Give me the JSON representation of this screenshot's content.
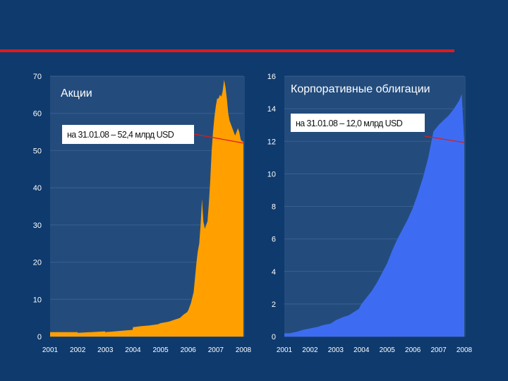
{
  "colors": {
    "background": "#0e3a6e",
    "plot_area": "#234c7d",
    "accent_line": "#e21a1a",
    "equity_fill": "#ffa000",
    "bond_fill": "#3d6cf2",
    "callout_bg": "#ffffff"
  },
  "chart_data": [
    {
      "type": "area",
      "title": "Акции",
      "annotation": "на 31.01.08 – 52,4 млрд USD",
      "x_ticks": [
        "2001",
        "2002",
        "2003",
        "2004",
        "2005",
        "2006",
        "2007",
        "2008"
      ],
      "y_ticks": [
        "0",
        "10",
        "20",
        "30",
        "40",
        "50",
        "60",
        "70"
      ],
      "ylim": [
        0,
        70
      ],
      "xlim": [
        2001,
        2008
      ],
      "grid": true,
      "series": [
        {
          "x": [
            2001.0,
            2001.5,
            2001.99,
            2002.0,
            2002.5,
            2002.99,
            2003.0,
            2003.5,
            2003.99,
            2004.0,
            2004.3,
            2004.6,
            2004.9,
            2005.0,
            2005.3,
            2005.5,
            2005.7,
            2005.85,
            2005.95,
            2006.0,
            2006.1,
            2006.2,
            2006.3,
            2006.35,
            2006.4,
            2006.45,
            2006.5,
            2006.55,
            2006.6,
            2006.65,
            2006.7,
            2006.75,
            2006.8,
            2006.85,
            2006.9,
            2006.95,
            2007.0,
            2007.05,
            2007.1,
            2007.15,
            2007.2,
            2007.25,
            2007.3,
            2007.35,
            2007.4,
            2007.45,
            2007.5,
            2007.55,
            2007.6,
            2007.65,
            2007.7,
            2007.75,
            2007.8,
            2007.85,
            2007.9,
            2007.95,
            2008.0
          ],
          "y": [
            1.2,
            1.2,
            1.2,
            1.0,
            1.2,
            1.4,
            1.2,
            1.5,
            1.8,
            2.5,
            2.8,
            3.0,
            3.3,
            3.6,
            4.0,
            4.5,
            5.0,
            6.0,
            6.5,
            7.0,
            9.0,
            12.0,
            20.0,
            23.0,
            25.0,
            30.0,
            37.0,
            31.0,
            29.0,
            30.0,
            31.0,
            36.0,
            42.0,
            50.0,
            55.0,
            59.0,
            62.0,
            64.0,
            64.0,
            65.0,
            64.5,
            66.0,
            69.0,
            67.0,
            64.0,
            60.0,
            58.0,
            57.0,
            56.0,
            55.0,
            54.0,
            55.0,
            56.0,
            55.0,
            53.0,
            52.5,
            52.4
          ]
        }
      ]
    },
    {
      "type": "area",
      "title": "Корпоративные облигации",
      "annotation": "на 31.01.08 – 12,0 млрд USD",
      "x_ticks": [
        "2001",
        "2002",
        "2003",
        "2004",
        "2005",
        "2006",
        "2007",
        "2008"
      ],
      "y_ticks": [
        "0",
        "2",
        "4",
        "6",
        "8",
        "10",
        "12",
        "14",
        "16"
      ],
      "ylim": [
        0,
        16
      ],
      "xlim": [
        2001,
        2008
      ],
      "grid": true,
      "series": [
        {
          "x": [
            2001.0,
            2001.2,
            2001.5,
            2001.7,
            2002.0,
            2002.3,
            2002.5,
            2002.8,
            2003.0,
            2003.3,
            2003.5,
            2003.7,
            2003.9,
            2004.0,
            2004.2,
            2004.4,
            2004.6,
            2004.8,
            2005.0,
            2005.2,
            2005.4,
            2005.6,
            2005.8,
            2006.0,
            2006.2,
            2006.4,
            2006.6,
            2006.8,
            2007.0,
            2007.2,
            2007.4,
            2007.6,
            2007.8,
            2007.9,
            2008.0
          ],
          "y": [
            0.2,
            0.2,
            0.3,
            0.4,
            0.5,
            0.6,
            0.7,
            0.8,
            1.0,
            1.2,
            1.3,
            1.5,
            1.7,
            2.0,
            2.4,
            2.8,
            3.3,
            3.9,
            4.5,
            5.3,
            6.0,
            6.6,
            7.2,
            7.9,
            8.8,
            9.8,
            11.0,
            12.6,
            13.0,
            13.3,
            13.6,
            14.0,
            14.5,
            14.9,
            12.0
          ]
        }
      ]
    }
  ]
}
